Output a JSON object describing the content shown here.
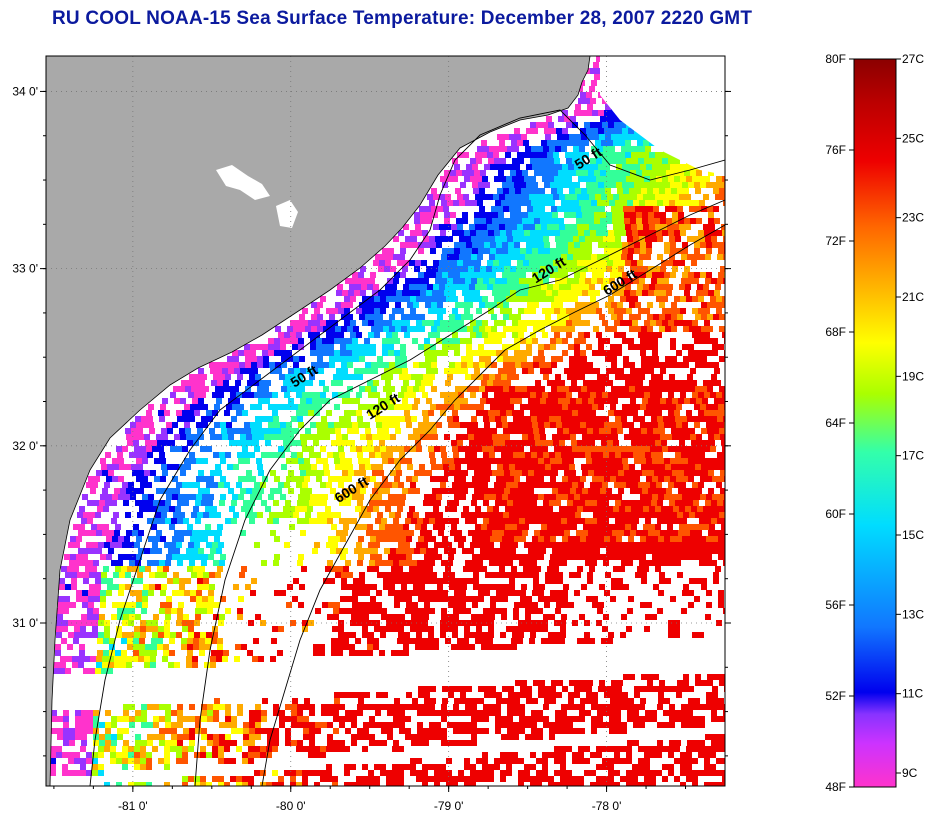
{
  "title": "RU COOL  NOAA-15  Sea Surface Temperature:  December 28, 2007 2220 GMT",
  "map": {
    "lon_range": [
      -81.55,
      -77.25
    ],
    "lat_range": [
      30.08,
      34.2
    ],
    "lat_ticks": [
      {
        "value": 34.0,
        "label": "34 0'"
      },
      {
        "value": 33.0,
        "label": "33 0'"
      },
      {
        "value": 32.0,
        "label": "32 0'"
      },
      {
        "value": 31.0,
        "label": "31 0'"
      }
    ],
    "lon_ticks": [
      {
        "value": -81.0,
        "label": "-81 0'"
      },
      {
        "value": -80.0,
        "label": "-80 0'"
      },
      {
        "value": -79.0,
        "label": "-79 0'"
      },
      {
        "value": -78.0,
        "label": "-78 0'"
      }
    ],
    "isobath_labels": [
      {
        "text": "50 ft",
        "lon": -78.1,
        "lat": 33.6
      },
      {
        "text": "50 ft",
        "lon": -79.9,
        "lat": 32.37
      },
      {
        "text": "120 ft",
        "lon": -78.35,
        "lat": 32.97
      },
      {
        "text": "120 ft",
        "lon": -79.4,
        "lat": 32.2
      },
      {
        "text": "600 ft",
        "lon": -77.9,
        "lat": 32.9
      },
      {
        "text": "600 ft",
        "lon": -79.6,
        "lat": 31.73
      }
    ],
    "colors": {
      "land": "#a9a9a9",
      "cloud": "#ffffff",
      "contour": "#000000"
    }
  },
  "colorbar": {
    "fahrenheit_labels": [
      "80F",
      "76F",
      "72F",
      "68F",
      "64F",
      "60F",
      "56F",
      "52F",
      "48F"
    ],
    "celsius_labels": [
      "27C",
      "25C",
      "23C",
      "21C",
      "19C",
      "17C",
      "15C",
      "13C",
      "11C",
      "9C"
    ],
    "stops": [
      "#ff33cc",
      "#9933ff",
      "#0000ee",
      "#1177ff",
      "#00ddff",
      "#33ff99",
      "#aaff00",
      "#ffff00",
      "#ffaa00",
      "#ff5500",
      "#ee0000",
      "#8b0000"
    ]
  }
}
